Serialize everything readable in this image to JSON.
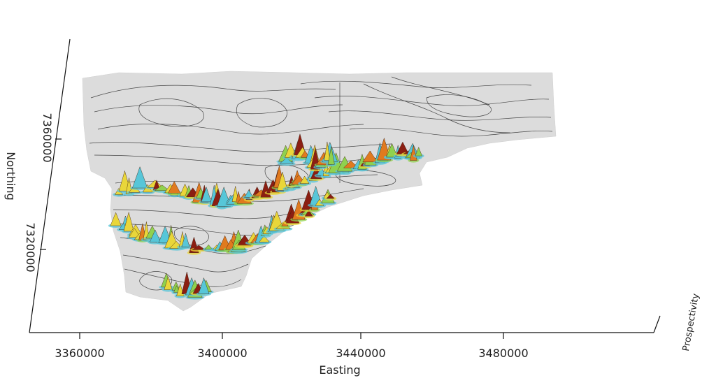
{
  "axes": {
    "x": {
      "title": "Easting",
      "ticks": [
        {
          "value": 3360000,
          "label": "3360000"
        },
        {
          "value": 3400000,
          "label": "3400000"
        },
        {
          "value": 3440000,
          "label": "3440000"
        },
        {
          "value": 3480000,
          "label": "3480000"
        }
      ]
    },
    "y": {
      "title": "Northing",
      "ticks": [
        {
          "value": 7360000,
          "label": "7360000"
        },
        {
          "value": 7320000,
          "label": "7320000"
        }
      ]
    },
    "z": {
      "title": "Prospectivity"
    }
  },
  "colors": {
    "base_surface": "#dcdcdc",
    "contour_lines": "#2a2a2a",
    "prospectivity_low": "#57c6d8",
    "prospectivity_mid_low": "#8fd14f",
    "prospectivity_mid": "#e9d63a",
    "prospectivity_mid_high": "#e07a1f",
    "prospectivity_high": "#8b1e12"
  }
}
